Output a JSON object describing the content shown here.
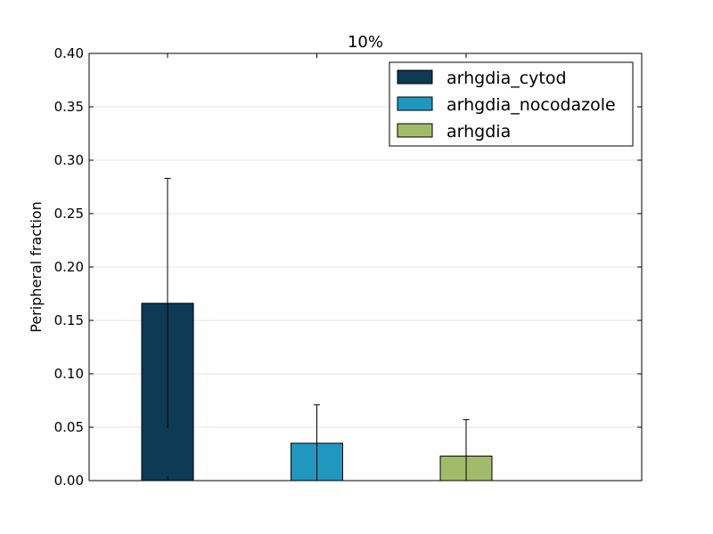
{
  "chart_data": {
    "type": "bar",
    "title": "10%",
    "xlabel": "",
    "ylabel": "Peripheral fraction",
    "ylim": [
      0,
      0.4
    ],
    "yticks": [
      "0.00",
      "0.05",
      "0.10",
      "0.15",
      "0.20",
      "0.25",
      "0.30",
      "0.35",
      "0.40"
    ],
    "grid": "horizontal",
    "legend_position": "top-right",
    "series": [
      {
        "name": "arhgdia_cytod",
        "value": 0.166,
        "error": 0.117,
        "color": "#0d3a54"
      },
      {
        "name": "arhgdia_nocodazole",
        "value": 0.035,
        "error": 0.036,
        "color": "#1f97bf"
      },
      {
        "name": "arhgdia",
        "value": 0.023,
        "error": 0.034,
        "color": "#a2bb6a"
      }
    ]
  }
}
